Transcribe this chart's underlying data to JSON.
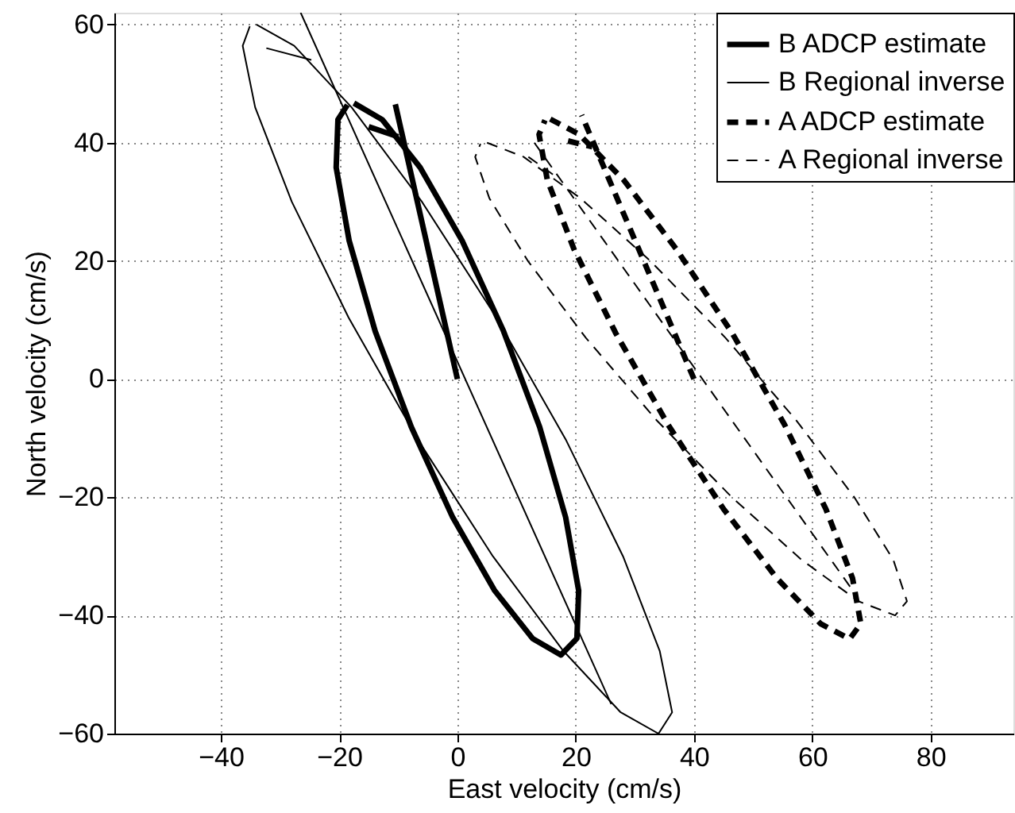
{
  "chart_data": {
    "type": "line",
    "xlabel": "East velocity (cm/s)",
    "ylabel": "North velocity (cm/s)",
    "xlim": [
      -58,
      94
    ],
    "ylim": [
      -60,
      62
    ],
    "xticks": [
      -40,
      -20,
      0,
      20,
      40,
      60,
      80
    ],
    "yticks": [
      -60,
      -40,
      -20,
      0,
      20,
      40,
      60
    ],
    "grid": true,
    "legend": "top right",
    "marker": "none",
    "series": [
      {
        "name": "B ADCP estimate",
        "color": "#000000",
        "line_style": "solid",
        "x": [
          -17.5,
          -12.7,
          -6.3,
          0.8,
          7.8,
          13.9,
          18.3,
          20.5,
          20.2,
          17.5,
          12.7,
          6.3,
          -0.8,
          -7.8,
          -13.9,
          -18.3,
          -20.5,
          -20.2,
          -18.6
        ],
        "values": [
          46.7,
          43.9,
          35.8,
          23.4,
          8.1,
          -8.1,
          -23.4,
          -35.8,
          -43.9,
          -46.7,
          -43.9,
          -35.8,
          -23.4,
          -8.1,
          8.1,
          23.4,
          35.8,
          43.9,
          46.4
        ]
      },
      {
        "name": "B Regional inverse",
        "color": "#000000",
        "line_style": "solid",
        "x": [
          -34,
          -27.6,
          -17.9,
          -6.0,
          6.6,
          18.4,
          28.0,
          34.2,
          36.3,
          34,
          27.6,
          17.9,
          6.0,
          -6.6,
          -18.4,
          -28.0,
          -34.2,
          -36.3,
          -35.1
        ],
        "values": [
          60,
          56.4,
          46.0,
          30.0,
          10.4,
          -10.4,
          -30.0,
          -46.0,
          -56.4,
          -60,
          -56.4,
          -46.0,
          -30.0,
          -10.4,
          10.4,
          30.0,
          46.0,
          56.4,
          59.7
        ]
      },
      {
        "name": "A ADCP estimate",
        "color": "#000000",
        "line_style": "dashed",
        "x": [
          15.7,
          20.6,
          28.1,
          37.0,
          46.5,
          55.3,
          62.3,
          66.8,
          68.2,
          66.3,
          61.4,
          54.0,
          45.0,
          35.6,
          26.8,
          19.7,
          15.2,
          13.8,
          14.8
        ],
        "values": [
          44,
          41.4,
          33.7,
          22.0,
          7.7,
          -7.7,
          -22.0,
          -33.7,
          -41.4,
          -44,
          -41.4,
          -33.7,
          -22.0,
          -7.7,
          7.7,
          22.0,
          33.7,
          41.4,
          43.8
        ]
      },
      {
        "name": "A Regional inverse",
        "color": "#000000",
        "line_style": "dashed",
        "x": [
          5.0,
          11.2,
          20.8,
          32.6,
          45.3,
          57.3,
          67.1,
          73.7,
          76.0,
          74.0,
          67.8,
          58.2,
          46.4,
          33.7,
          21.7,
          11.9,
          5.4,
          3.0,
          3.9
        ],
        "values": [
          40,
          37.6,
          30.6,
          20.0,
          7.0,
          -7.0,
          -20.0,
          -30.6,
          -37.6,
          -40,
          -37.6,
          -30.6,
          -20.0,
          -7.0,
          7.0,
          20.0,
          30.6,
          37.6,
          39.8
        ]
      },
      {
        "color": "#000000",
        "line_style": "solid",
        "x": [
          0,
          -10.5
        ],
        "values": [
          0,
          46.5
        ]
      },
      {
        "color": "#000000",
        "line_style": "solid",
        "x": [
          -15,
          -10
        ],
        "values": [
          42.7,
          41
        ]
      },
      {
        "color": "#000000",
        "line_style": "solid",
        "x": [
          -26.5,
          26
        ],
        "values": [
          62,
          -55
        ]
      },
      {
        "color": "#000000",
        "line_style": "solid",
        "x": [
          -32.3,
          -24.7
        ],
        "values": [
          56,
          54
        ]
      },
      {
        "color": "#000000",
        "line_style": "dashed",
        "x": [
          40,
          21
        ],
        "values": [
          0,
          44.7
        ]
      },
      {
        "color": "#000000",
        "line_style": "dashed",
        "x": [
          18.7,
          22.8
        ],
        "values": [
          40.3,
          39.3
        ]
      },
      {
        "color": "#000000",
        "line_style": "dashed",
        "x": [
          13,
          67
        ],
        "values": [
          40,
          -36
        ]
      },
      {
        "color": "#000000",
        "line_style": "dashed",
        "x": [
          12,
          17
        ],
        "values": [
          37.6,
          34
        ]
      }
    ]
  }
}
